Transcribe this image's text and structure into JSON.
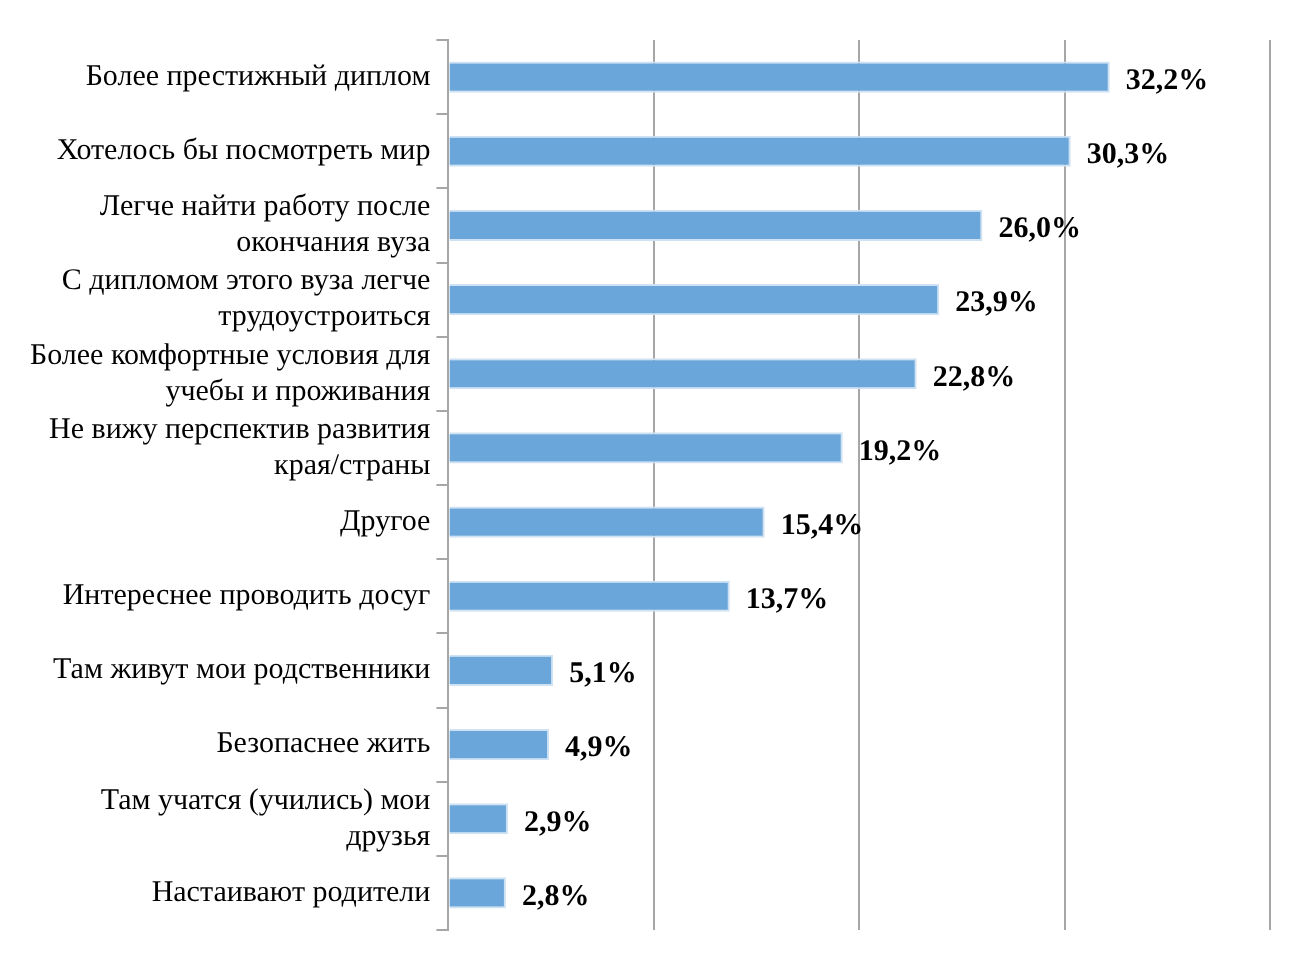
{
  "chart_data": {
    "type": "bar",
    "orientation": "horizontal",
    "categories": [
      "Более престижный диплом",
      "Хотелось бы посмотреть мир",
      "Легче найти работу после окончания вуза",
      "С дипломом этого вуза легче трудоустроиться",
      "Более комфортные условия для учебы и проживания",
      "Не вижу перспектив развития края/страны",
      "Другое",
      "Интереснее проводить досуг",
      "Там живут мои родственники",
      "Безопаснее жить",
      "Там учатся (учились) мои друзья",
      "Настаивают родители"
    ],
    "values": [
      32.2,
      30.3,
      26.0,
      23.9,
      22.8,
      19.2,
      15.4,
      13.7,
      5.1,
      4.9,
      2.9,
      2.8
    ],
    "value_labels": [
      "32,2%",
      "30,3%",
      "26,0%",
      "23,9%",
      "22,8%",
      "19,2%",
      "15,4%",
      "13,7%",
      "5,1%",
      "4,9%",
      "2,9%",
      "2,8%"
    ],
    "color": "#6aa6d9",
    "xlim": [
      0,
      40
    ],
    "xticks": [
      {
        "value": 0,
        "label": null
      },
      {
        "value": 10,
        "label": null
      },
      {
        "value": 20,
        "label": null
      },
      {
        "value": 30,
        "label": null
      },
      {
        "value": 40,
        "label": null
      }
    ],
    "tick_labels": "y",
    "grid": "x",
    "legend": false
  }
}
